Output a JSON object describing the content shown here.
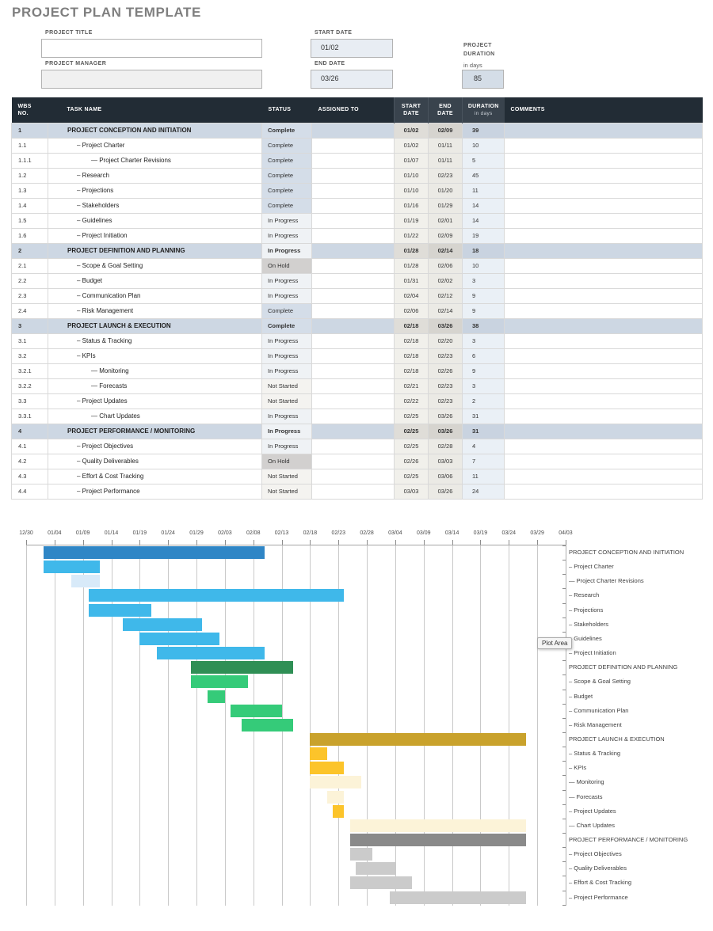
{
  "title": "PROJECT PLAN TEMPLATE",
  "form": {
    "project_title_label": "PROJECT TITLE",
    "project_title_value": "",
    "project_manager_label": "PROJECT MANAGER",
    "project_manager_value": "",
    "start_date_label": "START DATE",
    "start_date_value": "01/02",
    "end_date_label": "END DATE",
    "end_date_value": "03/26",
    "duration_label_line1": "PROJECT",
    "duration_label_line2": "DURATION",
    "duration_sub": "in days",
    "duration_value": "85"
  },
  "table": {
    "headers": {
      "wbs_line1": "WBS",
      "wbs_line2": "NO.",
      "task": "TASK NAME",
      "status": "STATUS",
      "assigned": "ASSIGNED TO",
      "start_line1": "START",
      "start_line2": "DATE",
      "end_line1": "END",
      "end_line2": "DATE",
      "duration": "DURATION",
      "duration_sub": "in days",
      "comments": "COMMENTS"
    },
    "rows": [
      {
        "wbs": "1",
        "task": "PROJECT CONCEPTION AND INITIATION",
        "level": 0,
        "section": true,
        "status": "Complete",
        "assigned": "",
        "start": "01/02",
        "end": "02/09",
        "dur": "39",
        "comments": ""
      },
      {
        "wbs": "1.1",
        "task": "– Project Charter",
        "level": 1,
        "section": false,
        "status": "Complete",
        "assigned": "",
        "start": "01/02",
        "end": "01/11",
        "dur": "10",
        "comments": ""
      },
      {
        "wbs": "1.1.1",
        "task": "— Project Charter Revisions",
        "level": 2,
        "section": false,
        "status": "Complete",
        "assigned": "",
        "start": "01/07",
        "end": "01/11",
        "dur": "5",
        "comments": ""
      },
      {
        "wbs": "1.2",
        "task": "– Research",
        "level": 1,
        "section": false,
        "status": "Complete",
        "assigned": "",
        "start": "01/10",
        "end": "02/23",
        "dur": "45",
        "comments": ""
      },
      {
        "wbs": "1.3",
        "task": "– Projections",
        "level": 1,
        "section": false,
        "status": "Complete",
        "assigned": "",
        "start": "01/10",
        "end": "01/20",
        "dur": "11",
        "comments": ""
      },
      {
        "wbs": "1.4",
        "task": "– Stakeholders",
        "level": 1,
        "section": false,
        "status": "Complete",
        "assigned": "",
        "start": "01/16",
        "end": "01/29",
        "dur": "14",
        "comments": ""
      },
      {
        "wbs": "1.5",
        "task": "– Guidelines",
        "level": 1,
        "section": false,
        "status": "In Progress",
        "assigned": "",
        "start": "01/19",
        "end": "02/01",
        "dur": "14",
        "comments": ""
      },
      {
        "wbs": "1.6",
        "task": "– Project Initiation",
        "level": 1,
        "section": false,
        "status": "In Progress",
        "assigned": "",
        "start": "01/22",
        "end": "02/09",
        "dur": "19",
        "comments": ""
      },
      {
        "wbs": "2",
        "task": "PROJECT DEFINITION AND PLANNING",
        "level": 0,
        "section": true,
        "status": "In Progress",
        "assigned": "",
        "start": "01/28",
        "end": "02/14",
        "dur": "18",
        "comments": ""
      },
      {
        "wbs": "2.1",
        "task": "– Scope & Goal Setting",
        "level": 1,
        "section": false,
        "status": "On Hold",
        "assigned": "",
        "start": "01/28",
        "end": "02/06",
        "dur": "10",
        "comments": ""
      },
      {
        "wbs": "2.2",
        "task": "– Budget",
        "level": 1,
        "section": false,
        "status": "In Progress",
        "assigned": "",
        "start": "01/31",
        "end": "02/02",
        "dur": "3",
        "comments": ""
      },
      {
        "wbs": "2.3",
        "task": "– Communication Plan",
        "level": 1,
        "section": false,
        "status": "In Progress",
        "assigned": "",
        "start": "02/04",
        "end": "02/12",
        "dur": "9",
        "comments": ""
      },
      {
        "wbs": "2.4",
        "task": "– Risk Management",
        "level": 1,
        "section": false,
        "status": "Complete",
        "assigned": "",
        "start": "02/06",
        "end": "02/14",
        "dur": "9",
        "comments": ""
      },
      {
        "wbs": "3",
        "task": "PROJECT LAUNCH & EXECUTION",
        "level": 0,
        "section": true,
        "status": "Complete",
        "assigned": "",
        "start": "02/18",
        "end": "03/26",
        "dur": "38",
        "comments": ""
      },
      {
        "wbs": "3.1",
        "task": "– Status & Tracking",
        "level": 1,
        "section": false,
        "status": "In Progress",
        "assigned": "",
        "start": "02/18",
        "end": "02/20",
        "dur": "3",
        "comments": ""
      },
      {
        "wbs": "3.2",
        "task": "– KPIs",
        "level": 1,
        "section": false,
        "status": "In Progress",
        "assigned": "",
        "start": "02/18",
        "end": "02/23",
        "dur": "6",
        "comments": ""
      },
      {
        "wbs": "3.2.1",
        "task": "— Monitoring",
        "level": 2,
        "section": false,
        "status": "In Progress",
        "assigned": "",
        "start": "02/18",
        "end": "02/26",
        "dur": "9",
        "comments": ""
      },
      {
        "wbs": "3.2.2",
        "task": "— Forecasts",
        "level": 2,
        "section": false,
        "status": "Not Started",
        "assigned": "",
        "start": "02/21",
        "end": "02/23",
        "dur": "3",
        "comments": ""
      },
      {
        "wbs": "3.3",
        "task": "– Project Updates",
        "level": 1,
        "section": false,
        "status": "Not Started",
        "assigned": "",
        "start": "02/22",
        "end": "02/23",
        "dur": "2",
        "comments": ""
      },
      {
        "wbs": "3.3.1",
        "task": "— Chart Updates",
        "level": 2,
        "section": false,
        "status": "In Progress",
        "assigned": "",
        "start": "02/25",
        "end": "03/26",
        "dur": "31",
        "comments": ""
      },
      {
        "wbs": "4",
        "task": "PROJECT PERFORMANCE / MONITORING",
        "level": 0,
        "section": true,
        "status": "In Progress",
        "assigned": "",
        "start": "02/25",
        "end": "03/26",
        "dur": "31",
        "comments": ""
      },
      {
        "wbs": "4.1",
        "task": "– Project Objectives",
        "level": 1,
        "section": false,
        "status": "In Progress",
        "assigned": "",
        "start": "02/25",
        "end": "02/28",
        "dur": "4",
        "comments": ""
      },
      {
        "wbs": "4.2",
        "task": "– Quality Deliverables",
        "level": 1,
        "section": false,
        "status": "On Hold",
        "assigned": "",
        "start": "02/26",
        "end": "03/03",
        "dur": "7",
        "comments": ""
      },
      {
        "wbs": "4.3",
        "task": "– Effort & Cost Tracking",
        "level": 1,
        "section": false,
        "status": "Not Started",
        "assigned": "",
        "start": "02/25",
        "end": "03/06",
        "dur": "11",
        "comments": ""
      },
      {
        "wbs": "4.4",
        "task": "– Project Performance",
        "level": 1,
        "section": false,
        "status": "Not Started",
        "assigned": "",
        "start": "03/03",
        "end": "03/26",
        "dur": "24",
        "comments": ""
      }
    ]
  },
  "gantt": {
    "plot_area_tooltip": "Plot Area",
    "colors": {
      "section-blue": "#2f86c6",
      "task-blue": "#3fb8ea",
      "pale-blue": "#d8eaf9",
      "section-green": "#2f8f55",
      "task-green": "#35cb79",
      "section-gold": "#c9a22c",
      "task-amber": "#fcc42a",
      "pale-cream": "#fcf3d8",
      "section-gray": "#8a8a8a",
      "task-gray": "#cbcbcb"
    }
  },
  "chart_data": {
    "type": "gantt",
    "title": "",
    "x_ticks": [
      "12/30",
      "01/04",
      "01/09",
      "01/14",
      "01/19",
      "01/24",
      "01/29",
      "02/03",
      "02/08",
      "02/13",
      "02/18",
      "02/23",
      "02/28",
      "03/04",
      "03/09",
      "03/14",
      "03/19",
      "03/24",
      "03/29",
      "04/03"
    ],
    "x_range_days": [
      "12/30",
      "04/03"
    ],
    "rows": [
      {
        "label": "PROJECT CONCEPTION AND INITIATION",
        "start": "01/02",
        "end": "02/09",
        "days": 39,
        "color": "section-blue"
      },
      {
        "label": "– Project Charter",
        "start": "01/02",
        "end": "01/11",
        "days": 10,
        "color": "task-blue"
      },
      {
        "label": "— Project Charter Revisions",
        "start": "01/07",
        "end": "01/11",
        "days": 5,
        "color": "pale-blue"
      },
      {
        "label": "– Research",
        "start": "01/10",
        "end": "02/23",
        "days": 45,
        "color": "task-blue"
      },
      {
        "label": "– Projections",
        "start": "01/10",
        "end": "01/20",
        "days": 11,
        "color": "task-blue"
      },
      {
        "label": "– Stakeholders",
        "start": "01/16",
        "end": "01/29",
        "days": 14,
        "color": "task-blue"
      },
      {
        "label": "– Guidelines",
        "start": "01/19",
        "end": "02/01",
        "days": 14,
        "color": "task-blue"
      },
      {
        "label": "– Project Initiation",
        "start": "01/22",
        "end": "02/09",
        "days": 19,
        "color": "task-blue"
      },
      {
        "label": "PROJECT DEFINITION AND PLANNING",
        "start": "01/28",
        "end": "02/14",
        "days": 18,
        "color": "section-green"
      },
      {
        "label": "– Scope & Goal Setting",
        "start": "01/28",
        "end": "02/06",
        "days": 10,
        "color": "task-green"
      },
      {
        "label": "– Budget",
        "start": "01/31",
        "end": "02/02",
        "days": 3,
        "color": "task-green"
      },
      {
        "label": "– Communication Plan",
        "start": "02/04",
        "end": "02/12",
        "days": 9,
        "color": "task-green"
      },
      {
        "label": "– Risk Management",
        "start": "02/06",
        "end": "02/14",
        "days": 9,
        "color": "task-green"
      },
      {
        "label": "PROJECT LAUNCH & EXECUTION",
        "start": "02/18",
        "end": "03/26",
        "days": 38,
        "color": "section-gold"
      },
      {
        "label": "– Status & Tracking",
        "start": "02/18",
        "end": "02/20",
        "days": 3,
        "color": "task-amber"
      },
      {
        "label": "– KPIs",
        "start": "02/18",
        "end": "02/23",
        "days": 6,
        "color": "task-amber"
      },
      {
        "label": "— Monitoring",
        "start": "02/18",
        "end": "02/26",
        "days": 9,
        "color": "pale-cream"
      },
      {
        "label": "— Forecasts",
        "start": "02/21",
        "end": "02/23",
        "days": 3,
        "color": "pale-cream"
      },
      {
        "label": "– Project Updates",
        "start": "02/22",
        "end": "02/23",
        "days": 2,
        "color": "task-amber"
      },
      {
        "label": "— Chart Updates",
        "start": "02/25",
        "end": "03/26",
        "days": 31,
        "color": "pale-cream"
      },
      {
        "label": "PROJECT PERFORMANCE / MONITORING",
        "start": "02/25",
        "end": "03/26",
        "days": 31,
        "color": "section-gray"
      },
      {
        "label": "– Project Objectives",
        "start": "02/25",
        "end": "02/28",
        "days": 4,
        "color": "task-gray"
      },
      {
        "label": "– Quality Deliverables",
        "start": "02/26",
        "end": "03/03",
        "days": 7,
        "color": "task-gray"
      },
      {
        "label": "– Effort & Cost Tracking",
        "start": "02/25",
        "end": "03/06",
        "days": 11,
        "color": "task-gray"
      },
      {
        "label": "– Project Performance",
        "start": "03/03",
        "end": "03/26",
        "days": 24,
        "color": "task-gray"
      }
    ]
  }
}
